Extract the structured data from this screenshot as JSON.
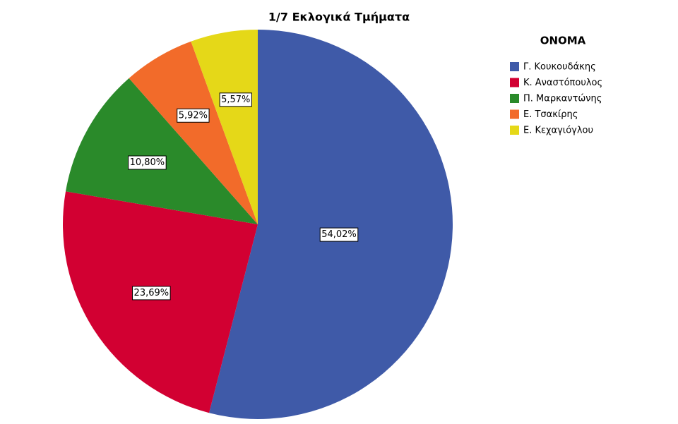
{
  "chart_data": {
    "type": "pie",
    "title": "1/7 Εκλογικά Τμήματα",
    "legend_title": "ΟΝΟΜΑ",
    "categories": [
      "Γ. Κουκουδάκης",
      "Κ. Αναστόπουλος",
      "Π. Μαρκαντώνης",
      "Ε. Τσακίρης",
      "Ε. Κεχαγιόγλου"
    ],
    "values": [
      54.02,
      23.69,
      10.8,
      5.92,
      5.57
    ],
    "value_labels": [
      "54,02%",
      "23,69%",
      "10,80%",
      "5,92%",
      "5,57%"
    ],
    "colors": [
      "#3f5aa8",
      "#d20032",
      "#2a8a2a",
      "#f26b2a",
      "#e5d818"
    ],
    "legend": "right"
  }
}
